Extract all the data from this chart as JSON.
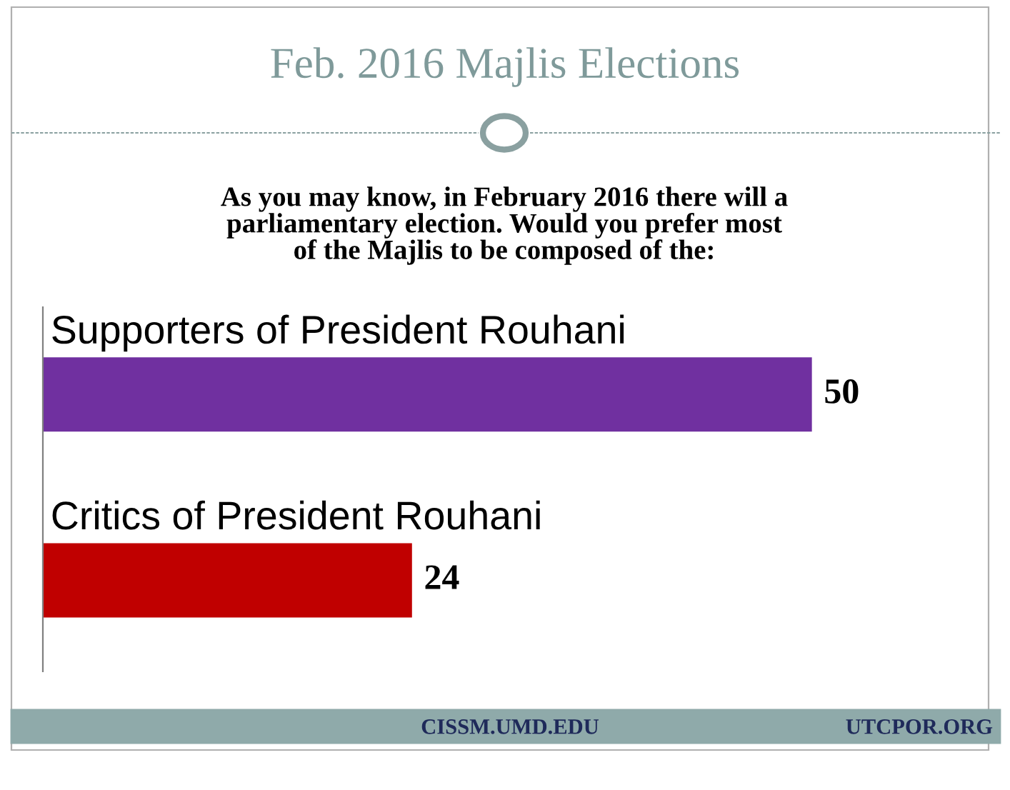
{
  "chart_data": {
    "type": "bar",
    "orientation": "horizontal",
    "title": "Feb. 2016 Majlis Elections",
    "subtitle": "As you may know, in February 2016 there will a\nparliamentary election. Would you prefer most\nof the Majlis to be composed of the:",
    "categories": [
      "Supporters of President Rouhani",
      "Critics of President Rouhani"
    ],
    "values": [
      50,
      24
    ],
    "colors": [
      "#7030a0",
      "#c00000"
    ],
    "data_labels": true,
    "annotations": [
      "CISSM.UMD.EDU",
      "UTCPOR.ORG"
    ]
  }
}
